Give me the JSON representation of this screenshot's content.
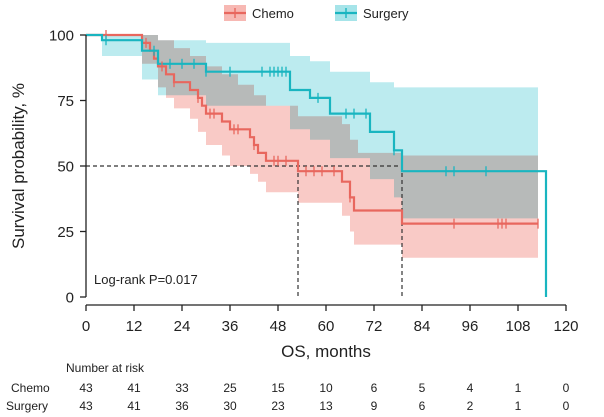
{
  "chart_data": {
    "type": "line",
    "subtype": "kaplan-meier",
    "title": "",
    "xlabel": "OS, months",
    "ylabel": "Survival probability, %",
    "xlim": [
      0,
      120
    ],
    "ylim": [
      0,
      100
    ],
    "x_ticks": [
      "0",
      "12",
      "24",
      "36",
      "48",
      "60",
      "72",
      "84",
      "96",
      "108",
      "120"
    ],
    "y_ticks": [
      "0",
      "25",
      "50",
      "75",
      "100"
    ],
    "legend_position": "top",
    "annotation": "Log-rank P=0.017",
    "median_survival": {
      "y": 50,
      "x_values": [
        53,
        79
      ]
    },
    "series": [
      {
        "name": "Chemo",
        "color": "#e8675e",
        "band_color": "#f7b8b3",
        "steps": [
          [
            0,
            100
          ],
          [
            14,
            100
          ],
          [
            14,
            97
          ],
          [
            16,
            97
          ],
          [
            16,
            94
          ],
          [
            17,
            94
          ],
          [
            17,
            91
          ],
          [
            18,
            91
          ],
          [
            18,
            88
          ],
          [
            20,
            88
          ],
          [
            20,
            85
          ],
          [
            22,
            85
          ],
          [
            22,
            82
          ],
          [
            26,
            82
          ],
          [
            26,
            79
          ],
          [
            28,
            79
          ],
          [
            28,
            76
          ],
          [
            29,
            76
          ],
          [
            29,
            73
          ],
          [
            30,
            73
          ],
          [
            30,
            70
          ],
          [
            34,
            70
          ],
          [
            34,
            67
          ],
          [
            36,
            67
          ],
          [
            36,
            64
          ],
          [
            41,
            64
          ],
          [
            41,
            61
          ],
          [
            42,
            61
          ],
          [
            42,
            58
          ],
          [
            43,
            58
          ],
          [
            43,
            55
          ],
          [
            45,
            55
          ],
          [
            45,
            52
          ],
          [
            53,
            52
          ],
          [
            53,
            48
          ],
          [
            64,
            48
          ],
          [
            64,
            44
          ],
          [
            66,
            44
          ],
          [
            66,
            38
          ],
          [
            67,
            38
          ],
          [
            67,
            33
          ],
          [
            79,
            33
          ],
          [
            79,
            28
          ],
          [
            113,
            28
          ]
        ],
        "upper": [
          [
            0,
            100
          ],
          [
            14,
            100
          ],
          [
            14,
            100
          ],
          [
            18,
            100
          ],
          [
            18,
            98
          ],
          [
            22,
            98
          ],
          [
            22,
            95
          ],
          [
            26,
            95
          ],
          [
            26,
            92
          ],
          [
            30,
            92
          ],
          [
            30,
            88
          ],
          [
            34,
            88
          ],
          [
            34,
            85
          ],
          [
            38,
            85
          ],
          [
            38,
            81
          ],
          [
            42,
            81
          ],
          [
            42,
            77
          ],
          [
            45,
            77
          ],
          [
            45,
            73
          ],
          [
            53,
            73
          ],
          [
            53,
            69
          ],
          [
            64,
            69
          ],
          [
            64,
            66
          ],
          [
            66,
            66
          ],
          [
            66,
            60
          ],
          [
            68,
            60
          ],
          [
            68,
            55
          ],
          [
            79,
            55
          ],
          [
            79,
            54
          ],
          [
            113,
            54
          ]
        ],
        "lower": [
          [
            0,
            100
          ],
          [
            14,
            100
          ],
          [
            14,
            89
          ],
          [
            18,
            89
          ],
          [
            18,
            80
          ],
          [
            20,
            80
          ],
          [
            20,
            76
          ],
          [
            22,
            76
          ],
          [
            22,
            72
          ],
          [
            26,
            72
          ],
          [
            26,
            68
          ],
          [
            28,
            68
          ],
          [
            28,
            63
          ],
          [
            30,
            63
          ],
          [
            30,
            58
          ],
          [
            34,
            58
          ],
          [
            34,
            54
          ],
          [
            36,
            54
          ],
          [
            36,
            50
          ],
          [
            41,
            50
          ],
          [
            41,
            47
          ],
          [
            43,
            47
          ],
          [
            43,
            44
          ],
          [
            45,
            44
          ],
          [
            45,
            40
          ],
          [
            53,
            40
          ],
          [
            53,
            36
          ],
          [
            64,
            36
          ],
          [
            64,
            31
          ],
          [
            66,
            31
          ],
          [
            66,
            25
          ],
          [
            67,
            25
          ],
          [
            67,
            20
          ],
          [
            79,
            20
          ],
          [
            79,
            15
          ],
          [
            113,
            15
          ]
        ],
        "censor_x": [
          5,
          15,
          19,
          22,
          28,
          31,
          32,
          37,
          38,
          42,
          47,
          48,
          50,
          55,
          57,
          59,
          62,
          66,
          92,
          103,
          104,
          105,
          113
        ]
      },
      {
        "name": "Surgery",
        "color": "#19b5c0",
        "band_color": "#a6e4e9",
        "steps": [
          [
            0,
            100
          ],
          [
            4,
            100
          ],
          [
            4,
            98
          ],
          [
            14,
            98
          ],
          [
            14,
            94
          ],
          [
            18,
            94
          ],
          [
            18,
            89
          ],
          [
            30,
            89
          ],
          [
            30,
            86
          ],
          [
            51,
            86
          ],
          [
            51,
            79
          ],
          [
            56,
            79
          ],
          [
            56,
            76
          ],
          [
            61,
            76
          ],
          [
            61,
            70
          ],
          [
            71,
            70
          ],
          [
            71,
            63
          ],
          [
            77,
            63
          ],
          [
            77,
            56
          ],
          [
            79,
            56
          ],
          [
            79,
            48
          ],
          [
            115,
            48
          ],
          [
            115,
            0
          ]
        ],
        "upper": [
          [
            0,
            100
          ],
          [
            4,
            100
          ],
          [
            4,
            100
          ],
          [
            18,
            100
          ],
          [
            18,
            98
          ],
          [
            30,
            98
          ],
          [
            30,
            97
          ],
          [
            51,
            97
          ],
          [
            51,
            92
          ],
          [
            56,
            92
          ],
          [
            56,
            90
          ],
          [
            61,
            90
          ],
          [
            61,
            86
          ],
          [
            71,
            86
          ],
          [
            71,
            82
          ],
          [
            77,
            82
          ],
          [
            77,
            80
          ],
          [
            113,
            80
          ]
        ],
        "lower": [
          [
            0,
            100
          ],
          [
            4,
            100
          ],
          [
            4,
            92
          ],
          [
            14,
            92
          ],
          [
            14,
            83
          ],
          [
            18,
            83
          ],
          [
            18,
            77
          ],
          [
            30,
            77
          ],
          [
            30,
            73
          ],
          [
            51,
            73
          ],
          [
            51,
            64
          ],
          [
            56,
            64
          ],
          [
            56,
            60
          ],
          [
            61,
            60
          ],
          [
            61,
            53
          ],
          [
            71,
            53
          ],
          [
            71,
            45
          ],
          [
            77,
            45
          ],
          [
            77,
            38
          ],
          [
            79,
            38
          ],
          [
            79,
            30
          ],
          [
            113,
            30
          ]
        ],
        "censor_x": [
          5,
          17,
          21,
          24,
          27,
          30,
          36,
          44,
          46,
          47,
          48,
          49,
          50,
          58,
          65,
          67,
          70,
          77,
          90,
          92,
          100
        ]
      }
    ]
  },
  "risk_table": {
    "header": "Number at risk",
    "rows": [
      {
        "label": "Chemo",
        "values": [
          "43",
          "41",
          "33",
          "25",
          "15",
          "10",
          "6",
          "5",
          "4",
          "1",
          "0"
        ]
      },
      {
        "label": "Surgery",
        "values": [
          "43",
          "41",
          "36",
          "30",
          "23",
          "13",
          "9",
          "6",
          "2",
          "1",
          "0"
        ]
      }
    ]
  }
}
